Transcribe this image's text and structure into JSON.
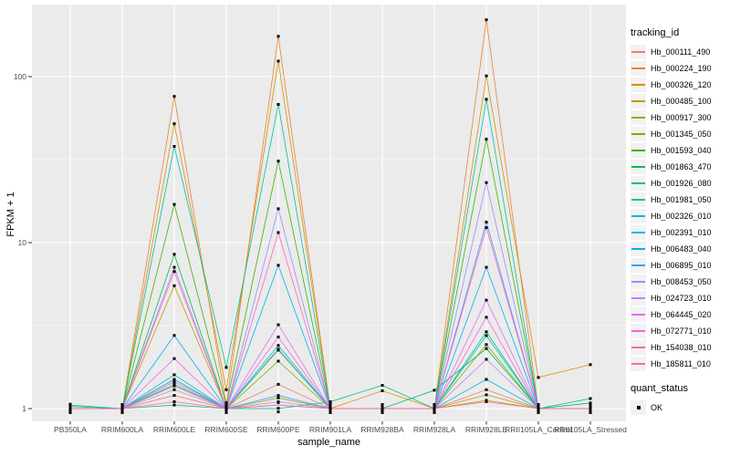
{
  "chart_data": {
    "type": "line",
    "title": "",
    "xlabel": "sample_name",
    "ylabel": "FPKM + 1",
    "y_scale": "log10",
    "y_ticks": [
      1,
      10,
      100
    ],
    "y_minor_gridlines": [
      3.1623,
      31.623
    ],
    "ylim": [
      0.83,
      270
    ],
    "grid": "major white on grey panel",
    "panel_bg": "#EBEBEB",
    "gridline_color": "#FFFFFF",
    "tick_label_color": "#4D4D4D",
    "point_color": "#000000",
    "legend_position": "right",
    "categories": [
      "PB350LA",
      "RRIM600LA",
      "RRIM600LE",
      "RRIM600SE",
      "RRIM600PE",
      "RRIM901LA",
      "RRIM928BA",
      "RRIM928LA",
      "RRIM928LE",
      "RRII105LA_Control",
      "RRII105LA_Stressed"
    ],
    "series": [
      {
        "name": "Hb_000111_490",
        "color": "#F8766D",
        "values": [
          1,
          1,
          1.2,
          1,
          1.4,
          1,
          1,
          1,
          1.3,
          1,
          1
        ]
      },
      {
        "name": "Hb_000224_190",
        "color": "#EA8331",
        "values": [
          1,
          1,
          76,
          1.05,
          175,
          1,
          1,
          1,
          220,
          1,
          1
        ]
      },
      {
        "name": "Hb_000326_120",
        "color": "#D89000",
        "values": [
          1,
          1,
          52,
          1.3,
          124,
          1,
          1.28,
          1,
          101,
          1.54,
          1.84
        ]
      },
      {
        "name": "Hb_000485_100",
        "color": "#C09B00",
        "values": [
          1,
          1,
          5.5,
          1,
          2.25,
          1,
          1,
          1,
          1.12,
          1,
          1
        ]
      },
      {
        "name": "Hb_000917_300",
        "color": "#A3A500",
        "values": [
          1,
          1,
          1.5,
          1,
          1.16,
          1,
          1,
          1,
          1.21,
          1,
          1
        ]
      },
      {
        "name": "Hb_001345_050",
        "color": "#7CAE00",
        "values": [
          1,
          1,
          1.37,
          1,
          1.93,
          1,
          1,
          1,
          2.43,
          1,
          1
        ]
      },
      {
        "name": "Hb_001593_040",
        "color": "#39B600",
        "values": [
          1,
          1,
          17,
          1.05,
          31,
          1,
          1,
          1,
          42,
          1,
          1
        ]
      },
      {
        "name": "Hb_001863_470",
        "color": "#00BB4E",
        "values": [
          1.03,
          1,
          8.5,
          1,
          1.05,
          1,
          1,
          1.29,
          2.3,
          1,
          1.08
        ]
      },
      {
        "name": "Hb_001926_080",
        "color": "#00BF7D",
        "values": [
          1,
          1,
          1.05,
          1,
          1,
          1.1,
          1.38,
          1,
          2.9,
          1,
          1.15
        ]
      },
      {
        "name": "Hb_001981_050",
        "color": "#00C1A3",
        "values": [
          1,
          1,
          38,
          1.77,
          68,
          1,
          1,
          1,
          73,
          1,
          1
        ]
      },
      {
        "name": "Hb_002326_010",
        "color": "#00BFC4",
        "values": [
          1.05,
          1,
          1.6,
          1,
          2.4,
          1,
          1,
          1,
          2.75,
          1,
          1
        ]
      },
      {
        "name": "Hb_002391_010",
        "color": "#00BAE0",
        "values": [
          1,
          1,
          1.5,
          1,
          2.28,
          1,
          1,
          1,
          1.5,
          1,
          1
        ]
      },
      {
        "name": "Hb_006483_040",
        "color": "#00B0F6",
        "values": [
          1,
          1,
          2.76,
          1,
          7.3,
          1,
          1,
          1,
          7.1,
          1,
          1
        ]
      },
      {
        "name": "Hb_006895_010",
        "color": "#35A2FF",
        "values": [
          1,
          1,
          1.4,
          1,
          1.2,
          1,
          1,
          1,
          13.3,
          1,
          1
        ]
      },
      {
        "name": "Hb_008453_050",
        "color": "#9590FF",
        "values": [
          1,
          1,
          7.1,
          1,
          16,
          1,
          1,
          1,
          23,
          1,
          1
        ]
      },
      {
        "name": "Hb_024723_010",
        "color": "#C77CFF",
        "values": [
          1,
          1,
          1.3,
          1,
          1.1,
          1,
          1,
          1,
          1.98,
          1,
          1
        ]
      },
      {
        "name": "Hb_064445_020",
        "color": "#E76BF3",
        "values": [
          1,
          1,
          2.0,
          1,
          3.2,
          1,
          1,
          1,
          4.5,
          1,
          1
        ]
      },
      {
        "name": "Hb_072771_010",
        "color": "#FA62DB",
        "values": [
          1,
          1,
          1.45,
          1,
          2.7,
          1,
          1,
          1,
          3.55,
          1,
          1
        ]
      },
      {
        "name": "Hb_154038_010",
        "color": "#FF62BC",
        "values": [
          1,
          1,
          6.7,
          1,
          11.5,
          1,
          1,
          1,
          12.3,
          1,
          1
        ]
      },
      {
        "name": "Hb_185811_010",
        "color": "#FF6A98",
        "values": [
          1,
          1,
          1.1,
          1,
          1.05,
          1,
          1,
          1,
          1.1,
          1,
          1
        ]
      }
    ],
    "legends": {
      "tracking_id": {
        "title": "tracking_id"
      },
      "quant_status": {
        "title": "quant_status",
        "items": [
          {
            "label": "OK"
          }
        ]
      }
    }
  }
}
